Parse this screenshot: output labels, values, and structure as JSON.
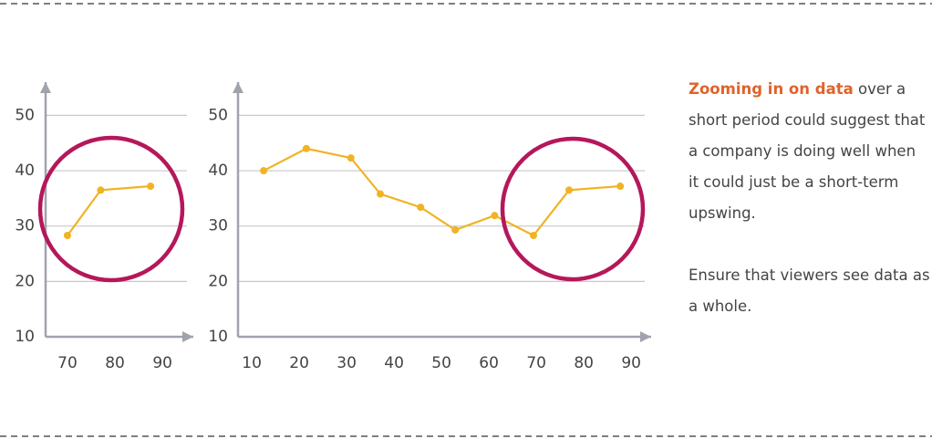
{
  "chart_data": [
    {
      "type": "line",
      "x": [
        70,
        77,
        87.5
      ],
      "y": [
        28.3,
        36.5,
        37.2
      ],
      "color": "#f0b323",
      "xlim": [
        65.4,
        96.5
      ],
      "ylim": [
        10,
        56
      ],
      "xticks": [
        70,
        80,
        90
      ],
      "yticks": [
        10,
        20,
        30,
        40,
        50
      ],
      "grid": true
    },
    {
      "type": "line",
      "x": [
        12.5,
        21.5,
        30.9,
        37.1,
        45.6,
        52.9,
        61.2,
        69.4,
        76.9,
        87.7
      ],
      "y": [
        40,
        44,
        42.3,
        35.8,
        33.4,
        29.3,
        31.9,
        28.3,
        36.5,
        37.2
      ],
      "color": "#f0b323",
      "xlim": [
        7.1,
        94.2
      ],
      "ylim": [
        10,
        56
      ],
      "xticks": [
        10,
        20,
        30,
        40,
        50,
        60,
        70,
        80,
        90
      ],
      "yticks": [
        10,
        20,
        30,
        40,
        50
      ],
      "grid": true
    }
  ],
  "text": {
    "paragraphs": [
      {
        "highlight": "Zooming in on data",
        "rest": "over a short period could suggest that a company is doing well when it could just be a short-term upswing."
      },
      {
        "text": "Ensure that viewers see data as a whole."
      }
    ]
  }
}
